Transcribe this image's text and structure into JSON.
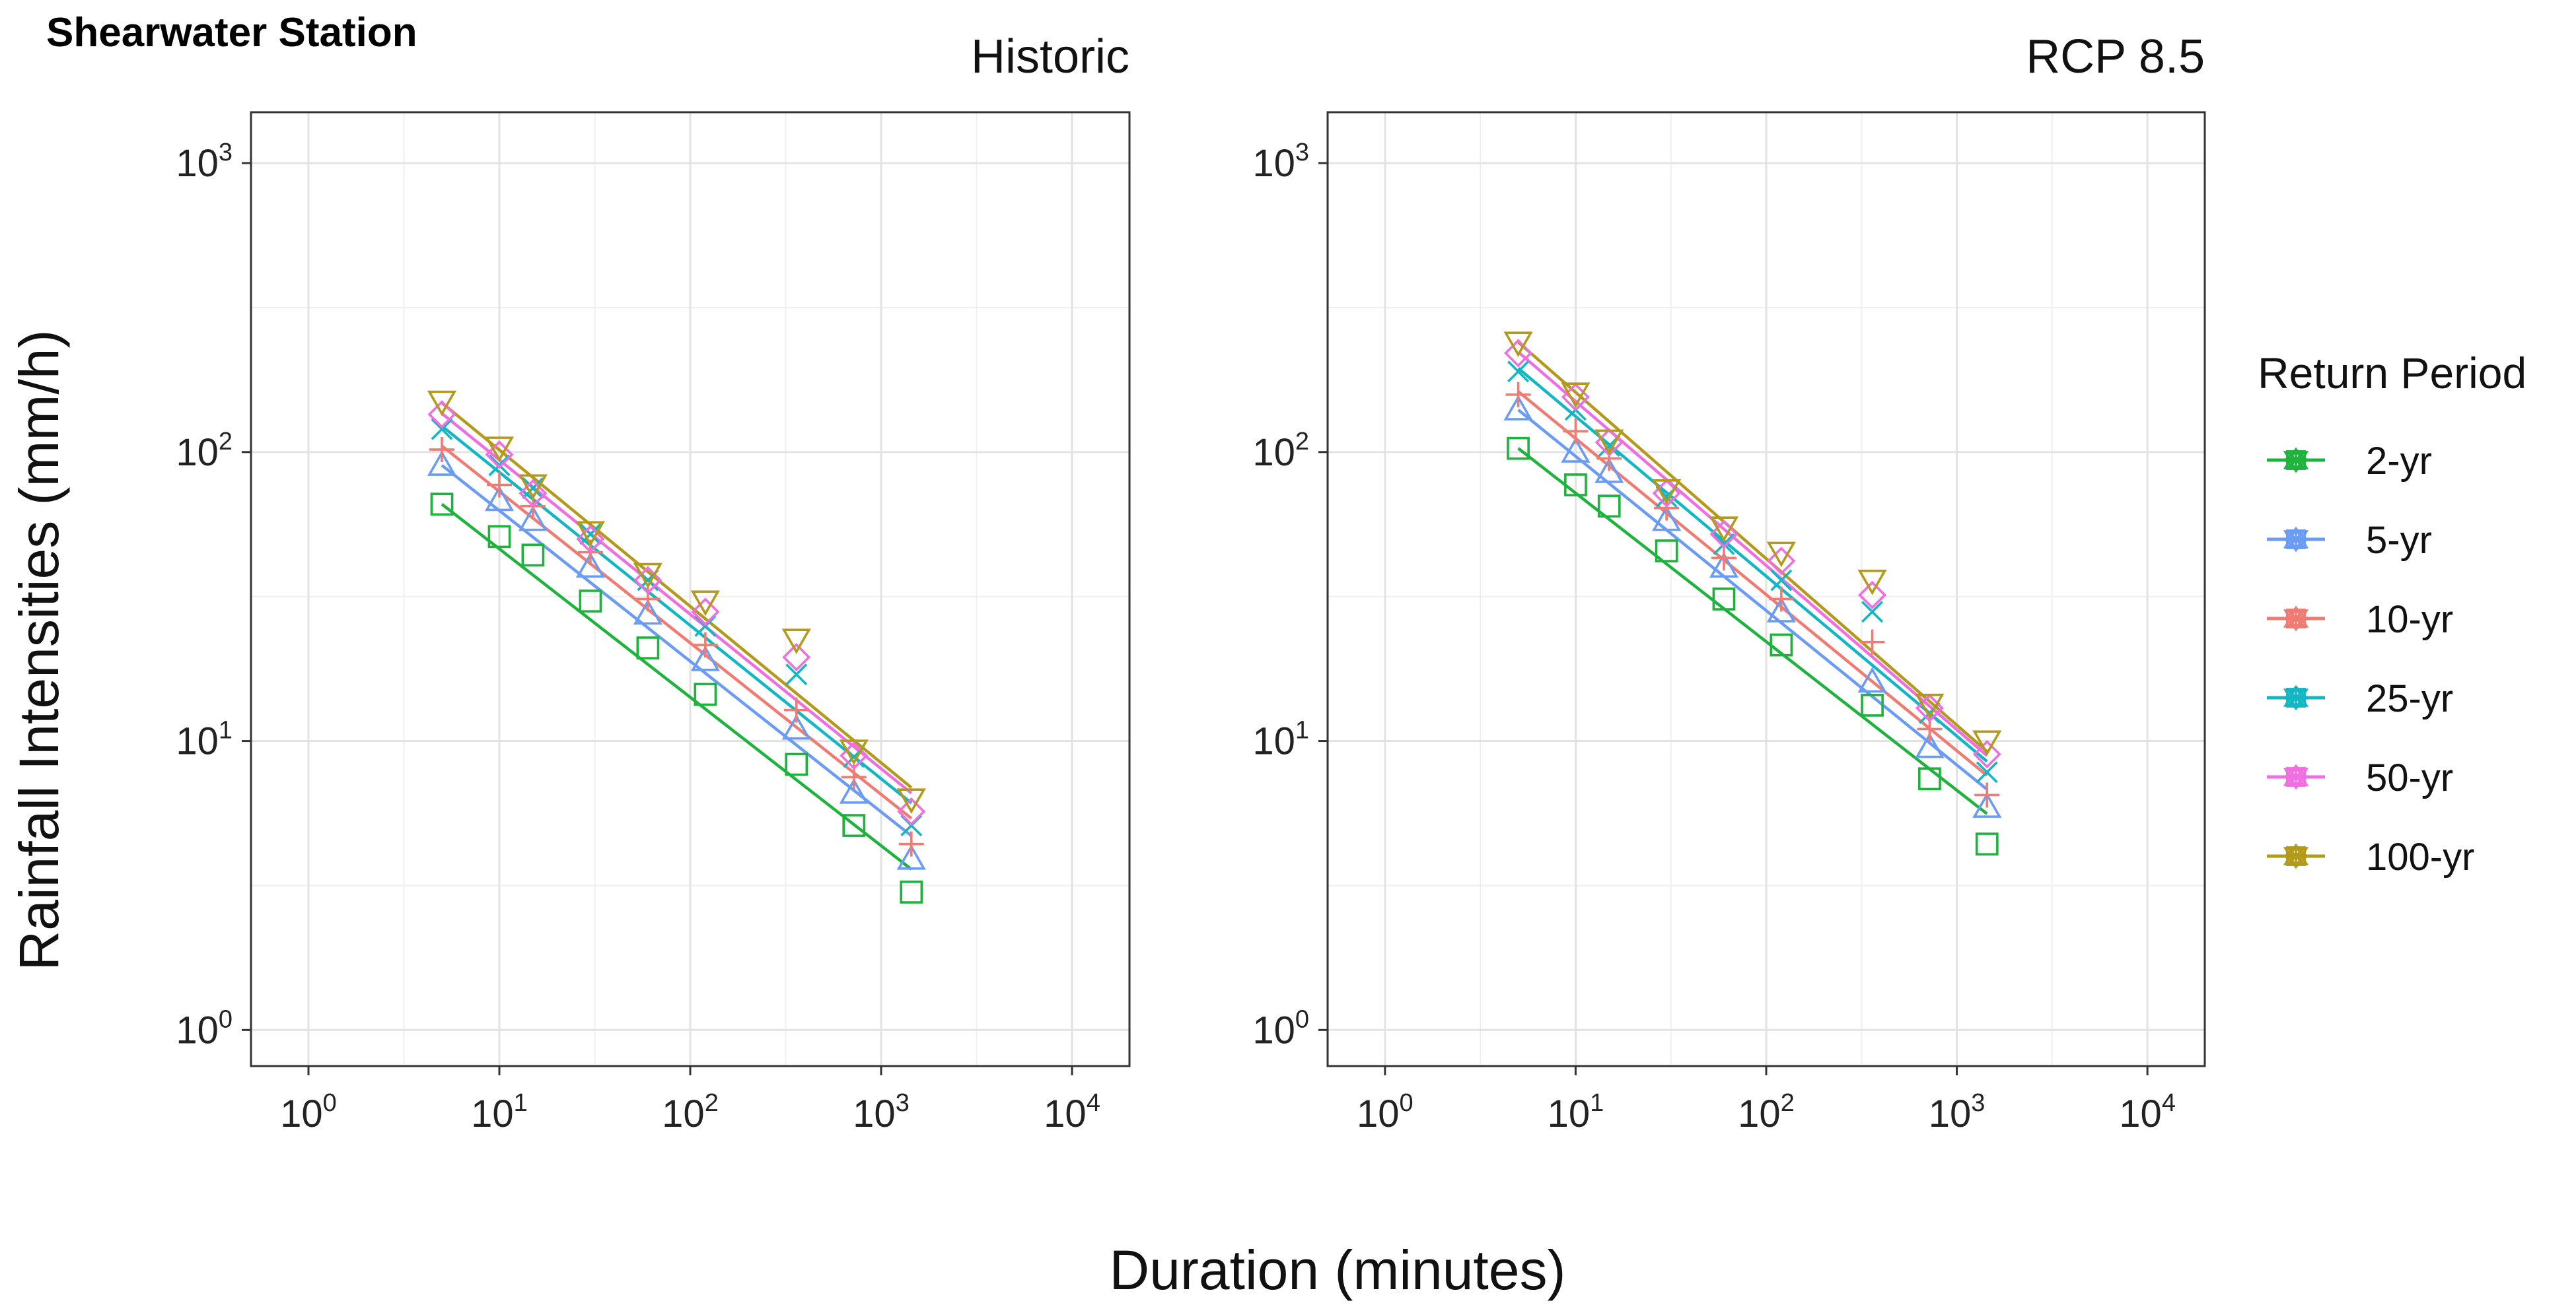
{
  "figure": {
    "station_title": "Shearwater Station",
    "xlabel": "Duration (minutes)",
    "ylabel": "Rainfall Intensities (mm/h)",
    "legend_title": "Return Period"
  },
  "chart_data": {
    "type": "scatter",
    "scale": "log-log",
    "xlim": [
      0.5,
      20000
    ],
    "ylim": [
      0.75,
      1500
    ],
    "x_ticks": [
      1,
      10,
      100,
      1000,
      10000
    ],
    "y_ticks": [
      1,
      10,
      100,
      1000
    ],
    "x_tick_labels": [
      {
        "base": "10",
        "exp": "0"
      },
      {
        "base": "10",
        "exp": "1"
      },
      {
        "base": "10",
        "exp": "2"
      },
      {
        "base": "10",
        "exp": "3"
      },
      {
        "base": "10",
        "exp": "4"
      }
    ],
    "y_tick_labels": [
      {
        "base": "10",
        "exp": "0"
      },
      {
        "base": "10",
        "exp": "1"
      },
      {
        "base": "10",
        "exp": "2"
      },
      {
        "base": "10",
        "exp": "3"
      }
    ],
    "grid": true,
    "legend_position": "right",
    "durations": [
      5,
      10,
      15,
      30,
      60,
      120,
      360,
      720,
      1440
    ],
    "series_styles": [
      {
        "name": "2-yr",
        "color": "#1db33c",
        "marker": "square"
      },
      {
        "name": "5-yr",
        "color": "#6a9cf5",
        "marker": "triangle-up"
      },
      {
        "name": "10-yr",
        "color": "#f07b72",
        "marker": "plus"
      },
      {
        "name": "25-yr",
        "color": "#13b7c4",
        "marker": "cross"
      },
      {
        "name": "50-yr",
        "color": "#f06fe0",
        "marker": "diamond"
      },
      {
        "name": "100-yr",
        "color": "#b39a1a",
        "marker": "triangle-down"
      }
    ],
    "panels": [
      {
        "title": "Historic",
        "series": [
          {
            "name": "2-yr",
            "values": [
              66,
              51,
              44,
              30.5,
              21,
              14.5,
              8.3,
              5.1,
              3.0
            ],
            "fit": [
              [
                5,
                66
              ],
              [
                1440,
                3.6
              ]
            ]
          },
          {
            "name": "5-yr",
            "values": [
              90,
              68,
              58,
              40,
              27.5,
              19,
              11,
              6.6,
              3.9
            ],
            "fit": [
              [
                5,
                90
              ],
              [
                1440,
                4.7
              ]
            ]
          },
          {
            "name": "10-yr",
            "values": [
              102,
              77,
              65,
              45,
              31,
              21.5,
              12.8,
              7.5,
              4.4
            ],
            "fit": [
              [
                5,
                105
              ],
              [
                1440,
                5.4
              ]
            ]
          },
          {
            "name": "25-yr",
            "values": [
              120,
              90,
              75,
              52,
              36,
              25,
              17,
              8.8,
              5.1
            ],
            "fit": [
              [
                5,
                123
              ],
              [
                1440,
                6.1
              ]
            ]
          },
          {
            "name": "50-yr",
            "values": [
              135,
              98,
              72,
              50,
              36,
              28,
              19.5,
              8.9,
              5.7
            ],
            "fit": [
              [
                5,
                136
              ],
              [
                1440,
                6.6
              ]
            ]
          },
          {
            "name": "100-yr",
            "values": [
              150,
              104,
              77,
              53,
              38,
              30.5,
              22.5,
              9.3,
              6.3
            ],
            "fit": [
              [
                5,
                148
              ],
              [
                1440,
                6.9
              ]
            ]
          }
        ]
      },
      {
        "title": "RCP 8.5",
        "series": [
          {
            "name": "2-yr",
            "values": [
              103,
              77,
              65,
              45.5,
              31,
              21.5,
              13.3,
              7.4,
              4.4
            ],
            "fit": [
              [
                5,
                103
              ],
              [
                1440,
                5.6
              ]
            ]
          },
          {
            "name": "5-yr",
            "values": [
              140,
              100,
              85,
              58,
              40,
              28,
              16,
              9.5,
              5.9
            ],
            "fit": [
              [
                5,
                140
              ],
              [
                1440,
                6.8
              ]
            ]
          },
          {
            "name": "10-yr",
            "values": [
              158,
              118,
              95,
              64,
              43,
              31,
              22,
              11,
              6.5
            ],
            "fit": [
              [
                5,
                162
              ],
              [
                1440,
                7.6
              ]
            ]
          },
          {
            "name": "25-yr",
            "values": [
              190,
              140,
              105,
              70,
              48,
              36,
              28,
              12.5,
              7.8
            ],
            "fit": [
              [
                5,
                195
              ],
              [
                1440,
                8.5
              ]
            ]
          },
          {
            "name": "50-yr",
            "values": [
              220,
              155,
              108,
              72,
              52,
              42,
              32,
              13,
              9.0
            ],
            "fit": [
              [
                5,
                222
              ],
              [
                1440,
                8.9
              ]
            ]
          },
          {
            "name": "100-yr",
            "values": [
              240,
              160,
              110,
              74,
              55,
              45,
              36,
              13.4,
              10.0
            ],
            "fit": [
              [
                5,
                240
              ],
              [
                1440,
                9.2
              ]
            ]
          }
        ]
      }
    ]
  }
}
